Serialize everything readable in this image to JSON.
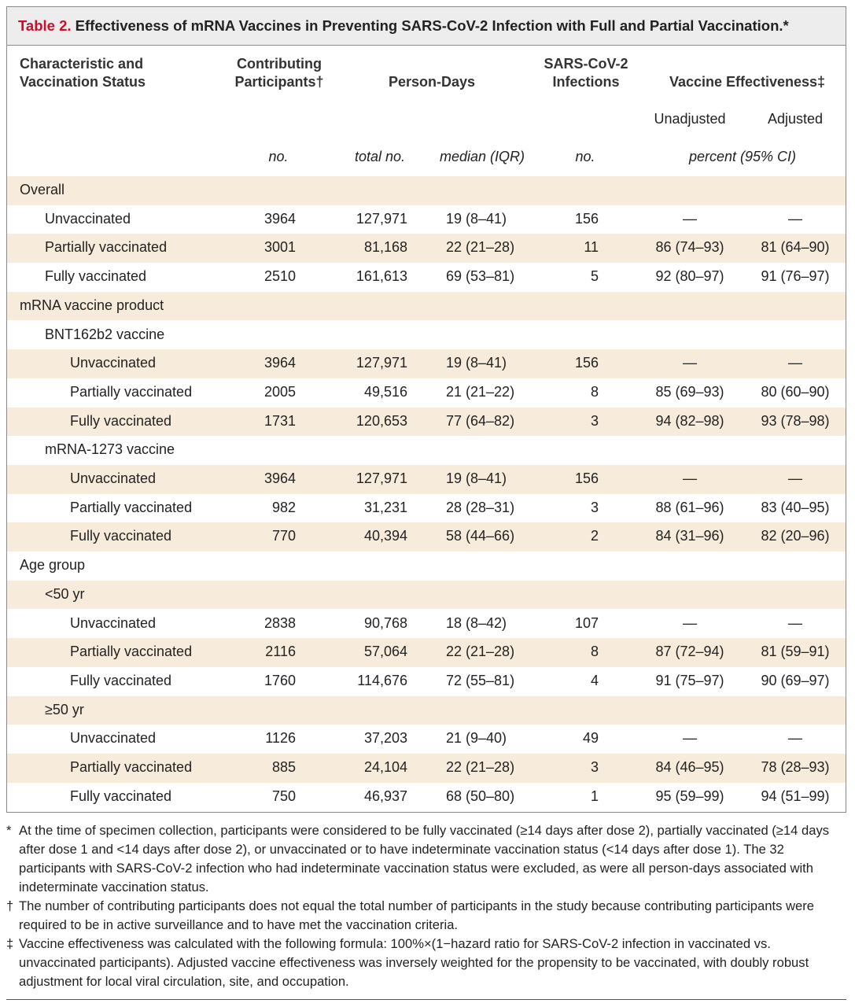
{
  "title": {
    "label": "Table 2.",
    "text": "Effectiveness of mRNA Vaccines in Preventing SARS-CoV-2 Infection with Full and Partial Vaccination.*"
  },
  "header": {
    "characteristic": [
      "Characteristic and",
      "Vaccination Status"
    ],
    "participants": {
      "title": [
        "Contributing",
        "Participants†"
      ],
      "unit": "no."
    },
    "person_days": {
      "title": "Person-Days",
      "units": [
        "total no.",
        "median (IQR)"
      ]
    },
    "infections": {
      "title": [
        "SARS-CoV-2",
        "Infections"
      ],
      "unit": "no."
    },
    "effectiveness": {
      "title": "Vaccine Effectiveness‡",
      "columns": [
        "Unadjusted",
        "Adjusted"
      ],
      "unit": "percent (95% CI)"
    }
  },
  "sections": [
    {
      "label": "Overall",
      "rows": [
        {
          "status": "Unvaccinated",
          "cells": [
            "3964",
            "127,971",
            "19 (8–41)",
            "156",
            "—",
            "—"
          ]
        },
        {
          "status": "Partially vaccinated",
          "cells": [
            "3001",
            "81,168",
            "22 (21–28)",
            "11",
            "86 (74–93)",
            "81 (64–90)"
          ]
        },
        {
          "status": "Fully vaccinated",
          "cells": [
            "2510",
            "161,613",
            "69 (53–81)",
            "5",
            "92 (80–97)",
            "91 (76–97)"
          ]
        }
      ]
    },
    {
      "label": "mRNA vaccine product",
      "groups": [
        {
          "label": "BNT162b2 vaccine",
          "rows": [
            {
              "status": "Unvaccinated",
              "cells": [
                "3964",
                "127,971",
                "19 (8–41)",
                "156",
                "—",
                "—"
              ]
            },
            {
              "status": "Partially vaccinated",
              "cells": [
                "2005",
                "49,516",
                "21 (21–22)",
                "8",
                "85 (69–93)",
                "80 (60–90)"
              ]
            },
            {
              "status": "Fully vaccinated",
              "cells": [
                "1731",
                "120,653",
                "77 (64–82)",
                "3",
                "94 (82–98)",
                "93 (78–98)"
              ]
            }
          ]
        },
        {
          "label": "mRNA-1273 vaccine",
          "rows": [
            {
              "status": "Unvaccinated",
              "cells": [
                "3964",
                "127,971",
                "19 (8–41)",
                "156",
                "—",
                "—"
              ]
            },
            {
              "status": "Partially vaccinated",
              "cells": [
                "982",
                "31,231",
                "28 (28–31)",
                "3",
                "88 (61–96)",
                "83 (40–95)"
              ]
            },
            {
              "status": "Fully vaccinated",
              "cells": [
                "770",
                "40,394",
                "58 (44–66)",
                "2",
                "84 (31–96)",
                "82 (20–96)"
              ]
            }
          ]
        }
      ]
    },
    {
      "label": "Age group",
      "groups": [
        {
          "label": "<50 yr",
          "rows": [
            {
              "status": "Unvaccinated",
              "cells": [
                "2838",
                "90,768",
                "18 (8–42)",
                "107",
                "—",
                "—"
              ]
            },
            {
              "status": "Partially vaccinated",
              "cells": [
                "2116",
                "57,064",
                "22 (21–28)",
                "8",
                "87 (72–94)",
                "81 (59–91)"
              ]
            },
            {
              "status": "Fully vaccinated",
              "cells": [
                "1760",
                "114,676",
                "72 (55–81)",
                "4",
                "91 (75–97)",
                "90 (69–97)"
              ]
            }
          ]
        },
        {
          "label": "≥50 yr",
          "rows": [
            {
              "status": "Unvaccinated",
              "cells": [
                "1126",
                "37,203",
                "21 (9–40)",
                "49",
                "—",
                "—"
              ]
            },
            {
              "status": "Partially vaccinated",
              "cells": [
                "885",
                "24,104",
                "22 (21–28)",
                "3",
                "84 (46–95)",
                "78 (28–93)"
              ]
            },
            {
              "status": "Fully vaccinated",
              "cells": [
                "750",
                "46,937",
                "68 (50–80)",
                "1",
                "95 (59–99)",
                "94 (51–99)"
              ]
            }
          ]
        }
      ]
    }
  ],
  "footnotes": [
    {
      "mark": "*",
      "text": "At the time of specimen collection, participants were considered to be fully vaccinated (≥14 days after dose 2), partially vaccinated (≥14 days after dose 1 and <14 days after dose 2), or unvaccinated or to have indeterminate vaccination status (<14 days after dose 1). The 32 participants with SARS-CoV-2 infection who had indeterminate vaccination status were excluded, as were all person-days associated with indeterminate vaccination status."
    },
    {
      "mark": "†",
      "text": "The number of contributing participants does not equal the total number of participants in the study because contributing participants were required to be in active surveillance and to have met the vaccination criteria."
    },
    {
      "mark": "‡",
      "text": "Vaccine effectiveness was calculated with the following formula: 100%×(1−hazard ratio for SARS-CoV-2 infection in vaccinated vs. unvaccinated participants). Adjusted vaccine effectiveness was inversely weighted for the propensity to be vaccinated, with doubly robust adjustment for local viral circulation, site, and occupation."
    }
  ]
}
